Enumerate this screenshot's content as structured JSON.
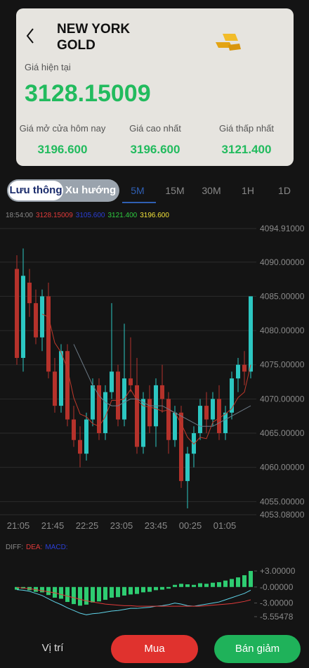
{
  "header": {
    "title": "NEW YORK GOLD",
    "current_label": "Giá hiện tại",
    "current_price": "3128.15009",
    "stats": [
      {
        "label": "Giá mở cửa hôm nay",
        "value": "3196.600"
      },
      {
        "label": "Giá cao nhất",
        "value": "3196.600"
      },
      {
        "label": "Giá thấp nhất",
        "value": "3121.400"
      }
    ]
  },
  "tabs": {
    "modes": [
      "Lưu thông",
      "Xu hướng"
    ],
    "intervals": [
      "5M",
      "15M",
      "30M",
      "1H",
      "1D"
    ]
  },
  "chart": {
    "type": "candlestick",
    "legend": [
      {
        "text": "18:54:00",
        "color": "#8a8a8a"
      },
      {
        "text": "3128.15009",
        "color": "#e03a3a"
      },
      {
        "text": "3105.600",
        "color": "#2b3fd6"
      },
      {
        "text": "3121.400",
        "color": "#2ecc40"
      },
      {
        "text": "3196.600",
        "color": "#f1e23a"
      }
    ],
    "up_color": "#2cc7c2",
    "down_color": "#b5322b",
    "ylim": [
      4053.08,
      4094.91
    ],
    "yticks": [
      {
        "value": 4094.91,
        "label": "4094.91000"
      },
      {
        "value": 4090,
        "label": "4090.00000"
      },
      {
        "value": 4085,
        "label": "4085.00000"
      },
      {
        "value": 4080,
        "label": "4080.00000"
      },
      {
        "value": 4075,
        "label": "4075.00000"
      },
      {
        "value": 4070,
        "label": "4070.00000"
      },
      {
        "value": 4065,
        "label": "4065.00000"
      },
      {
        "value": 4060,
        "label": "4060.00000"
      },
      {
        "value": 4055,
        "label": "4055.00000"
      },
      {
        "value": 4053.08,
        "label": "4053.08000"
      }
    ],
    "x_labels": [
      "21:05",
      "21:45",
      "22:25",
      "23:05",
      "23:45",
      "00:25",
      "01:05"
    ],
    "candles": [
      [
        4089,
        4091,
        4075,
        4076
      ],
      [
        4076,
        4092,
        4074,
        4088
      ],
      [
        4087,
        4089,
        4082,
        4084
      ],
      [
        4084,
        4086,
        4078,
        4079
      ],
      [
        4079,
        4086,
        4077,
        4085
      ],
      [
        4085,
        4087,
        4073,
        4074
      ],
      [
        4074,
        4076,
        4068,
        4069
      ],
      [
        4069,
        4078,
        4068,
        4077
      ],
      [
        4077,
        4078,
        4066,
        4067
      ],
      [
        4067,
        4069,
        4063,
        4064
      ],
      [
        4064,
        4066,
        4060,
        4062
      ],
      [
        4062,
        4068,
        4061,
        4067
      ],
      [
        4067,
        4073,
        4066,
        4072
      ],
      [
        4072,
        4073,
        4064,
        4065
      ],
      [
        4065,
        4072,
        4064,
        4071
      ],
      [
        4071,
        4084,
        4070,
        4074
      ],
      [
        4074,
        4075,
        4066,
        4067
      ],
      [
        4067,
        4081,
        4066,
        4073
      ],
      [
        4073,
        4079,
        4071,
        4072
      ],
      [
        4072,
        4076,
        4062,
        4063
      ],
      [
        4063,
        4071,
        4062,
        4070
      ],
      [
        4070,
        4072,
        4065,
        4066
      ],
      [
        4066,
        4073,
        4063,
        4072
      ],
      [
        4072,
        4075,
        4068,
        4070
      ],
      [
        4070,
        4071,
        4062,
        4064
      ],
      [
        4064,
        4069,
        4063,
        4068
      ],
      [
        4068,
        4069,
        4057,
        4058
      ],
      [
        4058,
        4063,
        4054,
        4062
      ],
      [
        4062,
        4066,
        4060,
        4065
      ],
      [
        4065,
        4070,
        4064,
        4069
      ],
      [
        4069,
        4071,
        4065,
        4067
      ],
      [
        4067,
        4071,
        4066,
        4070
      ],
      [
        4070,
        4072,
        4064,
        4065
      ],
      [
        4065,
        4069,
        4064,
        4068
      ],
      [
        4068,
        4074,
        4067,
        4073
      ],
      [
        4073,
        4076,
        4071,
        4075
      ],
      [
        4075,
        4077,
        4072,
        4074
      ],
      [
        4074,
        4085,
        4073,
        4085
      ]
    ],
    "lines": [
      {
        "color": "#c0392b",
        "values": [
          null,
          null,
          null,
          null,
          4082.4,
          4082,
          4078.2,
          4076.8,
          4074.4,
          4070.2,
          4067.8,
          4067.4,
          4066.4,
          4066,
          4067.4,
          4069.8,
          4069.8,
          4070,
          4071.4,
          4069.8,
          4069,
          4068.8,
          4068.6,
          4068.2,
          4068.4,
          4068,
          4066.4,
          4064.4,
          4063.4,
          4064.4,
          4064.2,
          4066.6,
          4067.2,
          4067.8,
          4068.6,
          4070.2,
          4071,
          4075
        ]
      },
      {
        "color": "#6c7a86",
        "values": [
          null,
          null,
          null,
          null,
          null,
          null,
          null,
          null,
          null,
          4078,
          4076,
          4074,
          4072,
          4070.5,
          4069.5,
          4069,
          4069,
          4069.5,
          4070,
          4070,
          4069.5,
          4069,
          4069,
          4069,
          4068.5,
          4068,
          4067.5,
          4067,
          4066.5,
          4066,
          4066,
          4066,
          4066.5,
          4067,
          4067.5,
          4068,
          4068.5,
          4069
        ]
      }
    ]
  },
  "macd": {
    "legend": [
      {
        "text": "DIFF:",
        "color": "#8a8a8a"
      },
      {
        "text": "DEA:",
        "color": "#e03a3a"
      },
      {
        "text": "MACD:",
        "color": "#2b3fd6"
      }
    ],
    "ylim": [
      -5.55478,
      3
    ],
    "yticks": [
      {
        "value": 3,
        "label": "+3.00000"
      },
      {
        "value": 0,
        "label": "-0.00000"
      },
      {
        "value": -3,
        "label": "-3.00000"
      },
      {
        "value": -5.55478,
        "label": "-5.55478"
      }
    ],
    "bar_color": "#2ecc71",
    "histogram": [
      -0.5,
      -0.3,
      -0.6,
      -0.9,
      -1.0,
      -1.5,
      -2.0,
      -2.2,
      -2.8,
      -3.2,
      -3.5,
      -3.3,
      -2.9,
      -2.7,
      -2.4,
      -2.0,
      -1.9,
      -1.6,
      -1.4,
      -1.3,
      -1.0,
      -0.9,
      -0.6,
      -0.5,
      -0.3,
      0.4,
      0.6,
      0.5,
      0.4,
      0.7,
      0.6,
      0.8,
      0.9,
      1.2,
      1.5,
      1.8,
      2.2,
      3.0
    ],
    "lines": [
      {
        "color": "#5fd3e8",
        "values": [
          -0.5,
          -0.6,
          -0.8,
          -1.2,
          -1.6,
          -2.2,
          -2.8,
          -3.3,
          -3.9,
          -4.4,
          -4.9,
          -5.2,
          -5.0,
          -4.9,
          -4.7,
          -4.5,
          -4.4,
          -4.2,
          -4.0,
          -4.0,
          -3.9,
          -3.8,
          -3.6,
          -3.5,
          -3.3,
          -3.0,
          -3.2,
          -3.5,
          -3.6,
          -3.4,
          -3.2,
          -3.0,
          -2.8,
          -2.4,
          -2.0,
          -1.6,
          -1.2,
          -0.6
        ]
      },
      {
        "color": "#e03a3a",
        "values": [
          -0.1,
          -0.2,
          -0.3,
          -0.5,
          -0.7,
          -0.9,
          -1.1,
          -1.4,
          -1.7,
          -2.0,
          -2.3,
          -2.6,
          -2.8,
          -3.0,
          -3.2,
          -3.3,
          -3.4,
          -3.5,
          -3.5,
          -3.6,
          -3.6,
          -3.6,
          -3.6,
          -3.6,
          -3.6,
          -3.6,
          -3.6,
          -3.6,
          -3.6,
          -3.6,
          -3.5,
          -3.4,
          -3.3,
          -3.2,
          -3.1,
          -2.9,
          -2.7,
          -2.4
        ]
      }
    ]
  },
  "footer": {
    "position": "Vị trí",
    "buy": "Mua",
    "sell": "Bán giảm"
  }
}
